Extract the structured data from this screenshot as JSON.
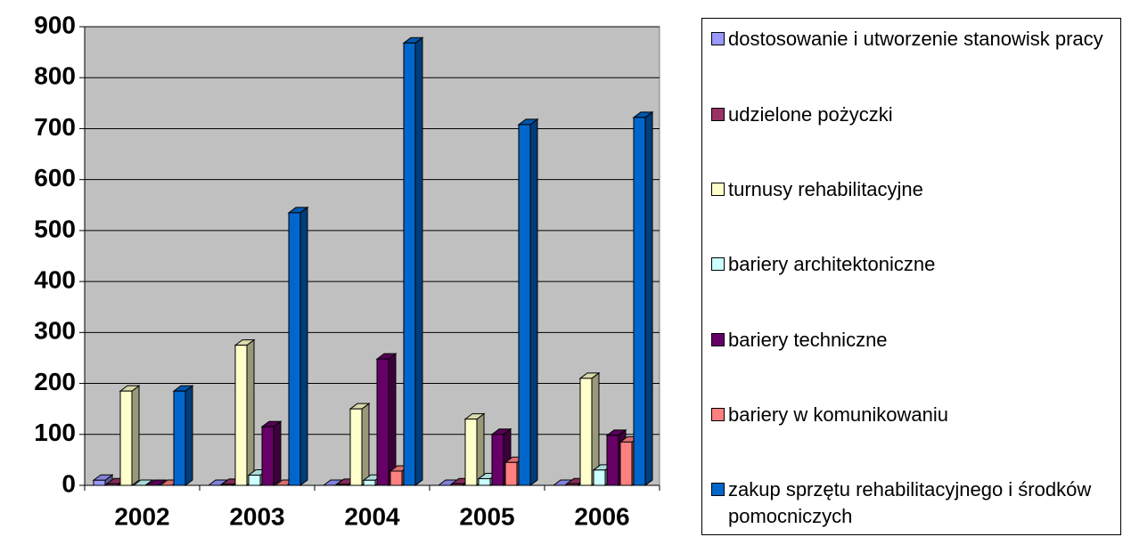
{
  "chart_data": {
    "type": "bar",
    "categories": [
      "2002",
      "2003",
      "2004",
      "2005",
      "2006"
    ],
    "series": [
      {
        "name": "dostosowanie i utworzenie stanowisk pracy",
        "color": "#9999ff",
        "values": [
          10,
          0,
          0,
          0,
          0
        ]
      },
      {
        "name": "udzielone pożyczki",
        "color": "#993366",
        "values": [
          3,
          2,
          2,
          3,
          3
        ]
      },
      {
        "name": "turnusy rehabilitacyjne",
        "color": "#ffffcc",
        "values": [
          185,
          275,
          150,
          130,
          210
        ]
      },
      {
        "name": "bariery architektoniczne",
        "color": "#ccffff",
        "values": [
          0,
          20,
          10,
          13,
          30
        ]
      },
      {
        "name": "bariery techniczne",
        "color": "#660066",
        "values": [
          0,
          115,
          248,
          100,
          98
        ]
      },
      {
        "name": "bariery w komunikowaniu",
        "color": "#ff8080",
        "values": [
          0,
          0,
          28,
          45,
          85
        ]
      },
      {
        "name": "zakup sprzętu rehabilitacyjnego i środków pomocniczych",
        "color": "#0066cc",
        "values": [
          185,
          535,
          868,
          708,
          722
        ]
      }
    ],
    "ylim": [
      0,
      900
    ],
    "yticks": [
      0,
      100,
      200,
      300,
      400,
      500,
      600,
      700,
      800,
      900
    ],
    "grid": true,
    "legend": "right"
  }
}
